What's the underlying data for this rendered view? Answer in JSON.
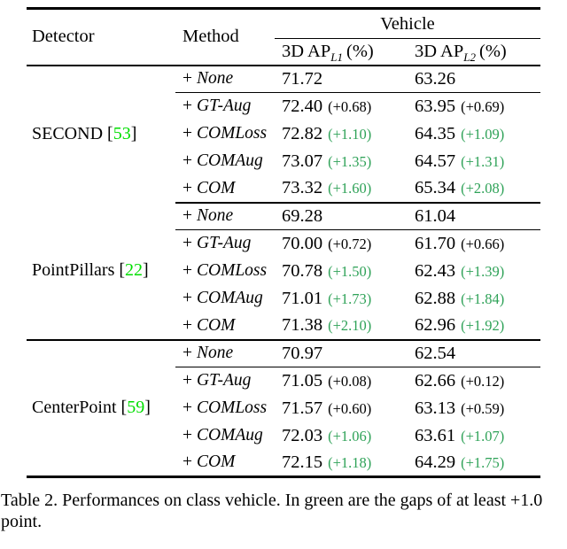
{
  "colors": {
    "citation_green": "#00DE00",
    "delta_green": "#2FA258",
    "text": "#000000",
    "rule": "#000000"
  },
  "header": {
    "detector": "Detector",
    "method": "Method",
    "group_title": "Vehicle",
    "ap_columns": [
      {
        "prefix": "3D AP",
        "sub": "L1",
        "suffix": "(%)"
      },
      {
        "prefix": "3D AP",
        "sub": "L2",
        "suffix": "(%)"
      }
    ]
  },
  "method_prefix": "+",
  "cite_brackets": {
    "open": "[",
    "close": "]"
  },
  "groups": [
    {
      "detector": {
        "name": "SECOND",
        "cite": "53"
      },
      "rows": [
        {
          "method": "None",
          "ap_l1": {
            "value": "71.72",
            "delta": "",
            "tone": "none"
          },
          "ap_l2": {
            "value": "63.26",
            "delta": "",
            "tone": "none"
          }
        },
        {
          "method": "GT-Aug",
          "ap_l1": {
            "value": "72.40",
            "delta": "(+0.68)",
            "tone": "black"
          },
          "ap_l2": {
            "value": "63.95",
            "delta": "(+0.69)",
            "tone": "black"
          }
        },
        {
          "method": "COMLoss",
          "ap_l1": {
            "value": "72.82",
            "delta": "(+1.10)",
            "tone": "green"
          },
          "ap_l2": {
            "value": "64.35",
            "delta": "(+1.09)",
            "tone": "green"
          }
        },
        {
          "method": "COMAug",
          "ap_l1": {
            "value": "73.07",
            "delta": "(+1.35)",
            "tone": "green"
          },
          "ap_l2": {
            "value": "64.57",
            "delta": "(+1.31)",
            "tone": "green"
          }
        },
        {
          "method": "COM",
          "ap_l1": {
            "value": "73.32",
            "delta": "(+1.60)",
            "tone": "green"
          },
          "ap_l2": {
            "value": "65.34",
            "delta": "(+2.08)",
            "tone": "green"
          }
        }
      ]
    },
    {
      "detector": {
        "name": "PointPillars",
        "cite": "22"
      },
      "rows": [
        {
          "method": "None",
          "ap_l1": {
            "value": "69.28",
            "delta": "",
            "tone": "none"
          },
          "ap_l2": {
            "value": "61.04",
            "delta": "",
            "tone": "none"
          }
        },
        {
          "method": "GT-Aug",
          "ap_l1": {
            "value": "70.00",
            "delta": "(+0.72)",
            "tone": "black"
          },
          "ap_l2": {
            "value": "61.70",
            "delta": "(+0.66)",
            "tone": "black"
          }
        },
        {
          "method": "COMLoss",
          "ap_l1": {
            "value": "70.78",
            "delta": "(+1.50)",
            "tone": "green"
          },
          "ap_l2": {
            "value": "62.43",
            "delta": "(+1.39)",
            "tone": "green"
          }
        },
        {
          "method": "COMAug",
          "ap_l1": {
            "value": "71.01",
            "delta": "(+1.73)",
            "tone": "green"
          },
          "ap_l2": {
            "value": "62.88",
            "delta": "(+1.84)",
            "tone": "green"
          }
        },
        {
          "method": "COM",
          "ap_l1": {
            "value": "71.38",
            "delta": "(+2.10)",
            "tone": "green"
          },
          "ap_l2": {
            "value": "62.96",
            "delta": "(+1.92)",
            "tone": "green"
          }
        }
      ]
    },
    {
      "detector": {
        "name": "CenterPoint",
        "cite": "59"
      },
      "rows": [
        {
          "method": "None",
          "ap_l1": {
            "value": "70.97",
            "delta": "",
            "tone": "none"
          },
          "ap_l2": {
            "value": "62.54",
            "delta": "",
            "tone": "none"
          }
        },
        {
          "method": "GT-Aug",
          "ap_l1": {
            "value": "71.05",
            "delta": "(+0.08)",
            "tone": "black"
          },
          "ap_l2": {
            "value": "62.66",
            "delta": "(+0.12)",
            "tone": "black"
          }
        },
        {
          "method": "COMLoss",
          "ap_l1": {
            "value": "71.57",
            "delta": "(+0.60)",
            "tone": "black"
          },
          "ap_l2": {
            "value": "63.13",
            "delta": "(+0.59)",
            "tone": "black"
          }
        },
        {
          "method": "COMAug",
          "ap_l1": {
            "value": "72.03",
            "delta": "(+1.06)",
            "tone": "green"
          },
          "ap_l2": {
            "value": "63.61",
            "delta": "(+1.07)",
            "tone": "green"
          }
        },
        {
          "method": "COM",
          "ap_l1": {
            "value": "72.15",
            "delta": "(+1.18)",
            "tone": "green"
          },
          "ap_l2": {
            "value": "64.29",
            "delta": "(+1.75)",
            "tone": "green"
          }
        }
      ]
    }
  ],
  "caption": {
    "text": "Table 2. Performances on class vehicle. In green are the gaps of at least +1.0 point."
  }
}
